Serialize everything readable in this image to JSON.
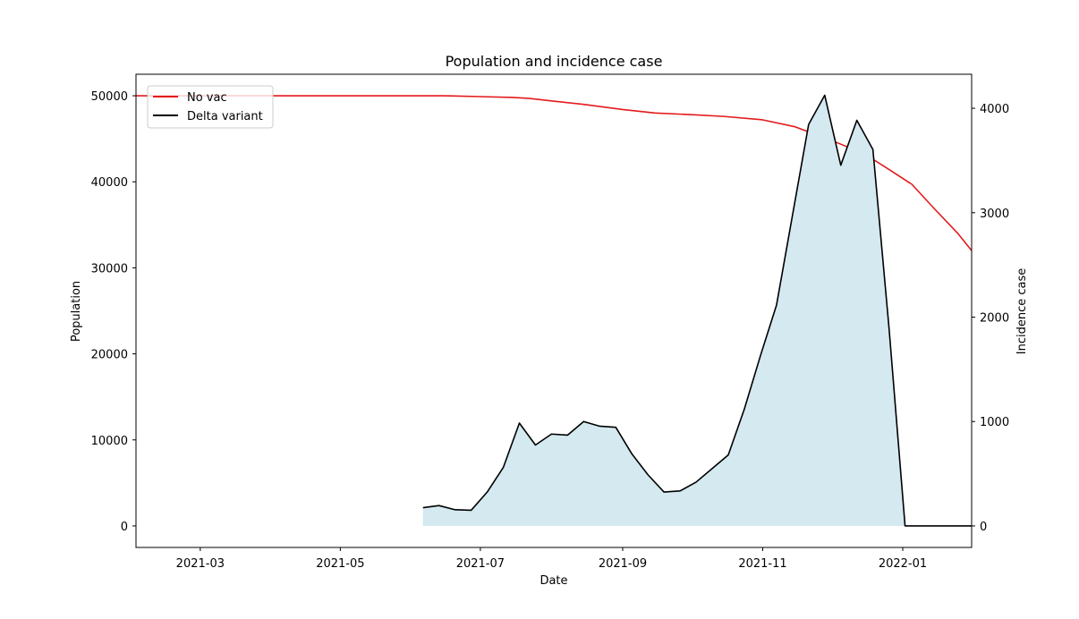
{
  "chart_data": {
    "type": "line",
    "title": "Population and incidence case",
    "xlabel": "Date",
    "ylabel_left": "Population",
    "ylabel_right": "Incidence case",
    "xlim": [
      "2021-02-01",
      "2022-01-31"
    ],
    "ylim_left": [
      -2500,
      52500
    ],
    "ylim_right": [
      -206,
      4326
    ],
    "x_ticks": [
      "2021-03",
      "2021-05",
      "2021-07",
      "2021-09",
      "2021-11",
      "2022-01"
    ],
    "y_ticks_left": [
      0,
      10000,
      20000,
      30000,
      40000,
      50000
    ],
    "y_ticks_right": [
      0,
      1000,
      2000,
      3000,
      4000
    ],
    "grid": false,
    "legend_position": "top-left",
    "series": [
      {
        "name": "No vac",
        "axis": "left",
        "color": "#e41a1c",
        "points": [
          [
            "2021-02-01",
            50000
          ],
          [
            "2021-04-01",
            50000
          ],
          [
            "2021-06-01",
            50000
          ],
          [
            "2021-06-15",
            50000
          ],
          [
            "2021-07-01",
            49900
          ],
          [
            "2021-07-15",
            49800
          ],
          [
            "2021-07-22",
            49700
          ],
          [
            "2021-08-01",
            49400
          ],
          [
            "2021-08-15",
            49000
          ],
          [
            "2021-09-01",
            48400
          ],
          [
            "2021-09-15",
            48000
          ],
          [
            "2021-10-01",
            47800
          ],
          [
            "2021-10-15",
            47600
          ],
          [
            "2021-11-01",
            47200
          ],
          [
            "2021-11-15",
            46400
          ],
          [
            "2021-12-01",
            44800
          ],
          [
            "2021-12-15",
            43300
          ],
          [
            "2021-12-25",
            41600
          ],
          [
            "2022-01-05",
            39700
          ],
          [
            "2022-01-15",
            36800
          ],
          [
            "2022-01-25",
            34000
          ],
          [
            "2022-01-31",
            32000
          ]
        ]
      },
      {
        "name": "Delta variant",
        "axis": "right",
        "color": "#000000",
        "fill": "#d4e9f0",
        "points": [
          [
            "2021-06-06",
            175
          ],
          [
            "2021-06-13",
            195
          ],
          [
            "2021-06-20",
            155
          ],
          [
            "2021-06-27",
            150
          ],
          [
            "2021-07-04",
            325
          ],
          [
            "2021-07-11",
            560
          ],
          [
            "2021-07-18",
            985
          ],
          [
            "2021-07-25",
            775
          ],
          [
            "2021-08-01",
            880
          ],
          [
            "2021-08-08",
            870
          ],
          [
            "2021-08-15",
            1000
          ],
          [
            "2021-08-22",
            955
          ],
          [
            "2021-08-29",
            945
          ],
          [
            "2021-09-05",
            690
          ],
          [
            "2021-09-12",
            490
          ],
          [
            "2021-09-19",
            325
          ],
          [
            "2021-09-26",
            335
          ],
          [
            "2021-10-03",
            420
          ],
          [
            "2021-10-10",
            550
          ],
          [
            "2021-10-17",
            680
          ],
          [
            "2021-10-24",
            1120
          ],
          [
            "2021-10-31",
            1630
          ],
          [
            "2021-11-07",
            2115
          ],
          [
            "2021-11-14",
            2980
          ],
          [
            "2021-11-21",
            3845
          ],
          [
            "2021-11-28",
            4125
          ],
          [
            "2021-12-05",
            3455
          ],
          [
            "2021-12-12",
            3885
          ],
          [
            "2021-12-19",
            3605
          ],
          [
            "2021-12-26",
            1900
          ],
          [
            "2022-01-02",
            0
          ],
          [
            "2022-01-09",
            0
          ],
          [
            "2022-01-16",
            0
          ],
          [
            "2022-01-23",
            0
          ],
          [
            "2022-01-31",
            0
          ]
        ]
      }
    ]
  }
}
